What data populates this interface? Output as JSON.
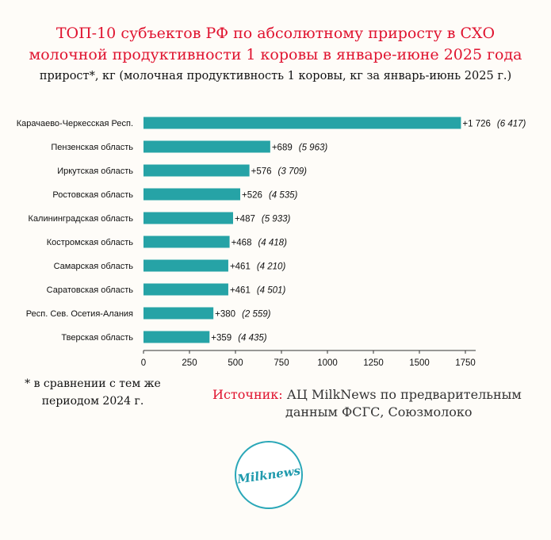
{
  "title_line1": "ТОП-10 субъектов РФ по абсолютному приросту в СХО",
  "title_line2": "молочной продуктивности 1 коровы в январе-июне 2025 года",
  "subtitle": "прирост*, кг (молочная продуктивность 1 коровы, кг за январь-июнь 2025 г.)",
  "footnote_line1": "* в сравнении с тем же",
  "footnote_line2": "периодом 2024 г.",
  "source_label": "Источник:",
  "source_text_line1": "АЦ MilkNews по предварительным",
  "source_text_line2": "данным ФСГС, Союзмолоко",
  "logo_text": "Milknews",
  "colors": {
    "bar": "#26a3a6",
    "title": "#e0132f",
    "logo": "#2aa7b8"
  },
  "chart_data": {
    "type": "bar",
    "orientation": "horizontal",
    "categories": [
      "Карачаево-Черкесская Респ.",
      "Пензенская область",
      "Иркутская область",
      "Ростовская область",
      "Калининградская область",
      "Костромская область",
      "Самарская область",
      "Саратовская область",
      "Респ. Сев. Осетия-Алания",
      "Тверская область"
    ],
    "values": [
      1726,
      689,
      576,
      526,
      487,
      468,
      461,
      461,
      380,
      359
    ],
    "value_labels": [
      "+1 726",
      "+689",
      "+576",
      "+526",
      "+487",
      "+468",
      "+461",
      "+461",
      "+380",
      "+359"
    ],
    "secondary_labels": [
      "(6 417)",
      "(5 963)",
      "(3 709)",
      "(4 535)",
      "(5 933)",
      "(4 418)",
      "(4 210)",
      "(4 501)",
      "(2 559)",
      "(4 435)"
    ],
    "xlim": [
      0,
      1750
    ],
    "xticks": [
      0,
      250,
      500,
      750,
      1000,
      1250,
      1500,
      1750
    ],
    "grid": false
  }
}
